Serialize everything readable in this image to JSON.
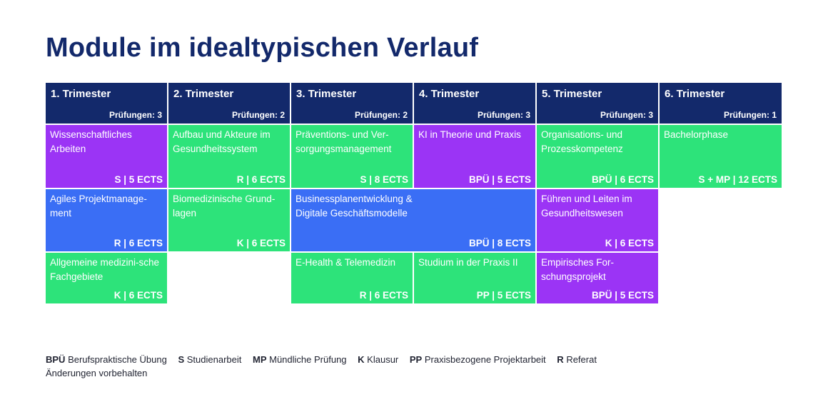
{
  "title": "Module im idealtypischen Verlauf",
  "trimesters": [
    {
      "name": "1. Trimester",
      "exams": "Prüfungen: 3"
    },
    {
      "name": "2. Trimester",
      "exams": "Prüfungen: 2"
    },
    {
      "name": "3. Trimester",
      "exams": "Prüfungen: 2"
    },
    {
      "name": "4. Trimester",
      "exams": "Prüfungen: 3"
    },
    {
      "name": "5. Trimester",
      "exams": "Prüfungen: 3"
    },
    {
      "name": "6. Trimester",
      "exams": "Prüfungen: 1"
    }
  ],
  "modules": [
    {
      "name": "Wissenschaftliches Arbeiten",
      "credits": "S | 5 ECTS",
      "color": "#9b34f5"
    },
    {
      "name": "Aufbau und Akteure im Gesundheitssystem",
      "credits": "R | 6 ECTS",
      "color": "#2de37a"
    },
    {
      "name": "Präventions- und Ver-sorgungsmanagement",
      "credits": "S | 8 ECTS",
      "color": "#2de37a"
    },
    {
      "name": "KI in Theorie und Praxis",
      "credits": "BPÜ | 5 ECTS",
      "color": "#9b34f5"
    },
    {
      "name": "Organisations- und Prozesskompetenz",
      "credits": "BPÜ | 6 ECTS",
      "color": "#2de37a"
    },
    {
      "name": "Bachelorphase",
      "credits": "S + MP | 12 ECTS",
      "color": "#2de37a"
    },
    {
      "name": "Agiles Projektmanage-ment",
      "credits": "R | 6 ECTS",
      "color": "#3a6ef5"
    },
    {
      "name": "Biomedizinische Grund-lagen",
      "credits": "K | 6 ECTS",
      "color": "#2de37a"
    },
    {
      "name": "Businessplanentwicklung & Digitale Geschäftsmodelle",
      "credits": "BPÜ | 8 ECTS",
      "color": "#3a6ef5"
    },
    {
      "name": "Führen und Leiten im Gesundheitswesen",
      "credits": "K | 6 ECTS",
      "color": "#9b34f5"
    },
    {
      "name": "Allgemeine medizini-sche Fachgebiete",
      "credits": "K | 6 ECTS",
      "color": "#2de37a"
    },
    {
      "name": "E-Health & Telemedizin",
      "credits": "R | 6 ECTS",
      "color": "#2de37a"
    },
    {
      "name": "Studium in der Praxis II",
      "credits": "PP | 5 ECTS",
      "color": "#2de37a"
    },
    {
      "name": "Empirisches For-schungsprojekt",
      "credits": "BPÜ | 5 ECTS",
      "color": "#9b34f5"
    }
  ],
  "legend": [
    {
      "abbr": "BPÜ",
      "text": "Berufspraktische Übung"
    },
    {
      "abbr": "S",
      "text": "Studienarbeit"
    },
    {
      "abbr": "MP",
      "text": "Mündliche Prüfung"
    },
    {
      "abbr": "K",
      "text": "Klausur"
    },
    {
      "abbr": "PP",
      "text": "Praxisbezogene Projektarbeit"
    },
    {
      "abbr": "R",
      "text": "Referat"
    }
  ],
  "footnote": "Änderungen vorbehalten",
  "colors": {
    "header": "#13296b",
    "purple": "#9b34f5",
    "green": "#2de37a",
    "blue": "#3a6ef5"
  }
}
